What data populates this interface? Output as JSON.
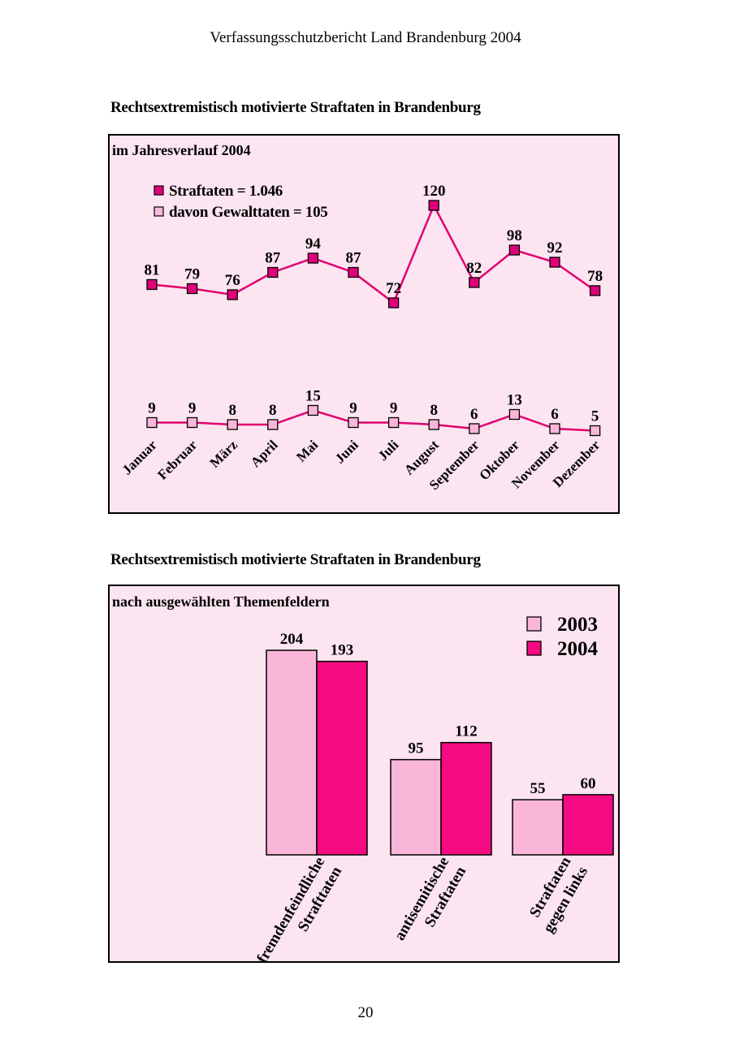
{
  "page": {
    "header": "Verfassungsschutzbericht Land Brandenburg 2004",
    "page_number": "20"
  },
  "chart_data": [
    {
      "type": "line",
      "title": "Rechtsextremistisch motivierte Straftaten in Brandenburg",
      "subtitle": "im Jahresverlauf 2004",
      "categories": [
        "Januar",
        "Februar",
        "März",
        "April",
        "Mai",
        "Juni",
        "Juli",
        "August",
        "September",
        "Oktober",
        "November",
        "Dezember"
      ],
      "series": [
        {
          "name": "Straftaten = 1.046",
          "values": [
            81,
            79,
            76,
            87,
            94,
            87,
            72,
            120,
            82,
            98,
            92,
            78
          ],
          "color": "#e0007a"
        },
        {
          "name": "davon Gewalttaten = 105",
          "values": [
            9,
            9,
            8,
            8,
            15,
            9,
            9,
            8,
            6,
            13,
            6,
            5
          ],
          "color": "#f9b6d8"
        }
      ],
      "line_color": "#e0006f",
      "background": "#fce4f0",
      "grid": false,
      "legend_position": "top-left"
    },
    {
      "type": "bar",
      "title": "Rechtsextremistisch motivierte Straftaten in Brandenburg",
      "subtitle": "nach ausgewählten Themenfeldern",
      "categories": [
        [
          "fremdenfeindliche",
          "Strafttaten"
        ],
        [
          "antisemitische",
          "Straftaten"
        ],
        [
          "Straftaten",
          "gegen  links"
        ]
      ],
      "series": [
        {
          "name": "2003",
          "values": [
            204,
            95,
            55
          ],
          "color": "#f9b6d8"
        },
        {
          "name": "2004",
          "values": [
            193,
            112,
            60
          ],
          "color": "#f50a82"
        }
      ],
      "background": "#fce4f0",
      "grid": false,
      "legend_position": "top-right"
    }
  ]
}
